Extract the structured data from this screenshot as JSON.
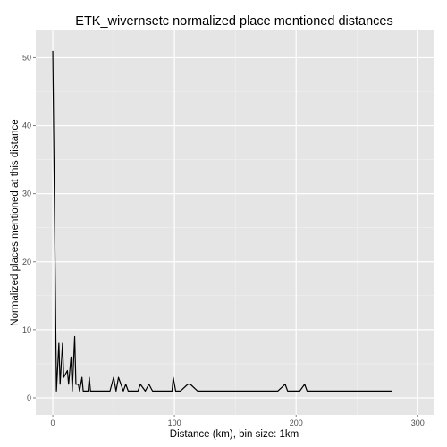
{
  "chart_data": {
    "type": "line",
    "title": "ETK_wivernsetc normalized place mentioned distances",
    "xlabel": "Distance (km), bin size: 1km",
    "ylabel": "Normalized places mentioned at this distance",
    "xlim": [
      -14,
      313
    ],
    "ylim": [
      -2.5,
      54
    ],
    "x_ticks": [
      0,
      100,
      200,
      300
    ],
    "x_tick_labels": [
      "0",
      "100",
      "200",
      "300"
    ],
    "y_ticks": [
      0,
      10,
      20,
      30,
      40,
      50
    ],
    "y_tick_labels": [
      "0",
      "10",
      "20",
      "30",
      "40",
      "50"
    ],
    "grid": true,
    "background": "#e5e5e5",
    "line_color": "#000000",
    "series": [
      {
        "values": {
          "x": [
            0,
            3,
            5,
            6,
            8,
            9,
            12,
            13,
            15,
            16,
            18,
            19,
            21,
            22,
            24,
            25,
            29,
            30,
            31,
            34,
            47,
            50,
            52,
            54,
            56,
            58,
            60,
            62,
            64,
            70,
            72,
            76,
            79,
            82,
            92,
            98,
            99,
            101,
            105,
            111,
            113,
            119,
            120,
            185,
            191,
            193,
            197,
            203,
            207,
            209,
            279
          ],
          "y": [
            51,
            1,
            8,
            2,
            8,
            3,
            4,
            2,
            6,
            1,
            9,
            2,
            2,
            1,
            3,
            1,
            1,
            3,
            1,
            1,
            1,
            3,
            1,
            3,
            2,
            1,
            2,
            1,
            1,
            1,
            2,
            1,
            2,
            1,
            1,
            1,
            3,
            1,
            1,
            2,
            2,
            1,
            1,
            1,
            2,
            1,
            1,
            1,
            2,
            1,
            1
          ]
        }
      }
    ]
  }
}
